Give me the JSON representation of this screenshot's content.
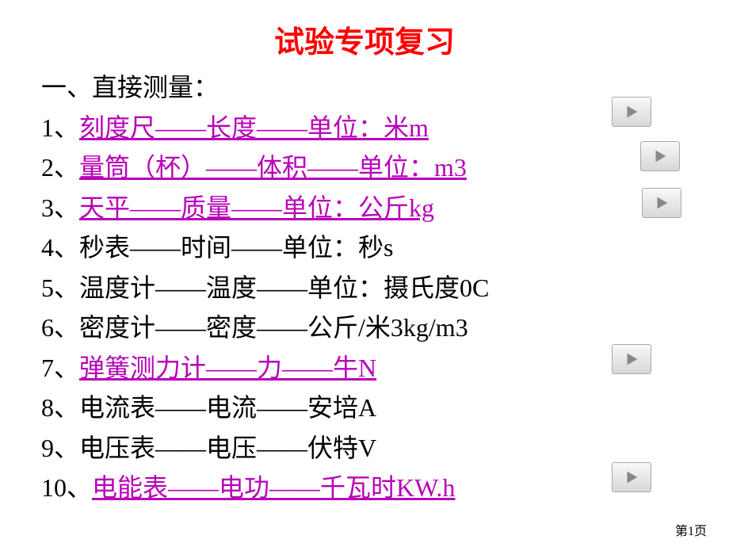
{
  "title": "试验专项复习",
  "heading": "一、直接测量：",
  "items": [
    {
      "prefix": "1、",
      "linkedText": "刻度尺——长度——单位：米m",
      "plainText": "",
      "hasLink": true,
      "hasButton": true,
      "btnTop": 122,
      "btnLeft": 772
    },
    {
      "prefix": "2、",
      "linkedText": "量筒（杯）——体积——单位：m3",
      "plainText": "",
      "hasLink": true,
      "hasButton": true,
      "btnTop": 178,
      "btnLeft": 808
    },
    {
      "prefix": "3、",
      "linkedText": "天平——质量——单位：公斤kg",
      "plainText": "",
      "hasLink": true,
      "hasButton": true,
      "btnTop": 237,
      "btnLeft": 810
    },
    {
      "prefix": "4、",
      "linkedText": "",
      "plainText": "秒表——时间——单位：秒s",
      "hasLink": false,
      "hasButton": false
    },
    {
      "prefix": "5、",
      "linkedText": "",
      "plainText": "温度计——温度——单位：摄氏度0C",
      "hasLink": false,
      "hasButton": false
    },
    {
      "prefix": "6、",
      "linkedText": "",
      "plainText": "密度计——密度——公斤/米3kg/m3",
      "hasLink": false,
      "hasButton": false
    },
    {
      "prefix": "7、",
      "linkedText": "弹簧测力计——力——牛N",
      "plainText": "",
      "hasLink": true,
      "hasButton": true,
      "btnTop": 434,
      "btnLeft": 772
    },
    {
      "prefix": "8、",
      "linkedText": "",
      "plainText": "电流表——电流——安培A",
      "hasLink": false,
      "hasButton": false
    },
    {
      "prefix": "9、",
      "linkedText": "",
      "plainText": "电压表——电压——伏特V",
      "hasLink": false,
      "hasButton": false
    },
    {
      "prefix": "10、",
      "linkedText": "电能表——电功——千瓦时KW.h",
      "plainText": "",
      "hasLink": true,
      "hasButton": true,
      "btnTop": 583,
      "btnLeft": 772
    }
  ],
  "footer": "第1页",
  "iconColor": "#888888"
}
